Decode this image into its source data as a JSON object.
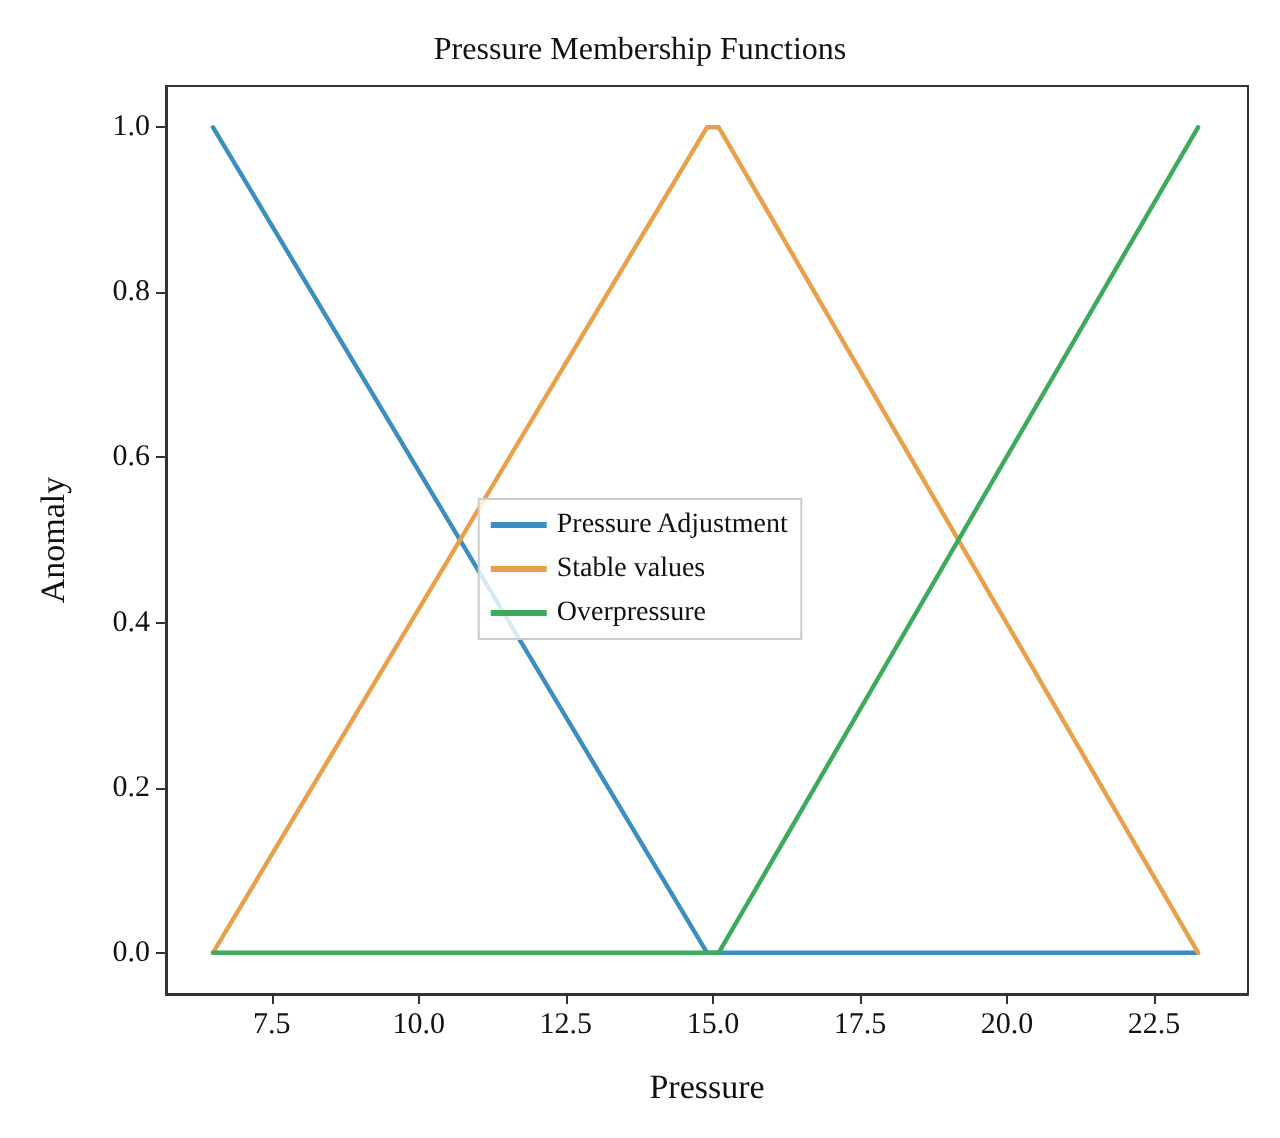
{
  "chart_data": {
    "type": "line",
    "title": "Pressure Membership Functions",
    "xlabel": "Pressure",
    "ylabel": "Anomaly",
    "xlim": [
      5.7,
      24.1
    ],
    "xticks": [
      {
        "value": 7.5,
        "label": "7.5"
      },
      {
        "value": 10,
        "label": "10.0"
      },
      {
        "value": 12.5,
        "label": "12.5"
      },
      {
        "value": 15,
        "label": "15.0"
      },
      {
        "value": 17.5,
        "label": "17.5"
      },
      {
        "value": 20,
        "label": "20.0"
      },
      {
        "value": 22.5,
        "label": "22.5"
      }
    ],
    "ylim": [
      -0.05,
      1.05
    ],
    "yticks": [
      {
        "value": 0,
        "label": "0.0"
      },
      {
        "value": 0.2,
        "label": "0.2"
      },
      {
        "value": 0.4,
        "label": "0.4"
      },
      {
        "value": 0.6,
        "label": "0.6"
      },
      {
        "value": 0.8,
        "label": "0.8"
      },
      {
        "value": 1,
        "label": "1.0"
      }
    ],
    "series": [
      {
        "name": "Pressure Adjustment",
        "color": "#3b8fc0",
        "x": [
          6.5,
          14.9,
          23.25
        ],
        "values": [
          1,
          0,
          0
        ]
      },
      {
        "name": "Stable values",
        "color": "#e8a14a",
        "x": [
          6.5,
          14.9,
          15.1,
          23.25
        ],
        "values": [
          0,
          1,
          1,
          0
        ]
      },
      {
        "name": "Overpressure",
        "color": "#3daa5c",
        "x": [
          6.5,
          15.1,
          23.25
        ],
        "values": [
          0,
          0,
          1
        ]
      }
    ],
    "legend": "center",
    "grid": false,
    "marker": "none",
    "line_style": "solid"
  }
}
